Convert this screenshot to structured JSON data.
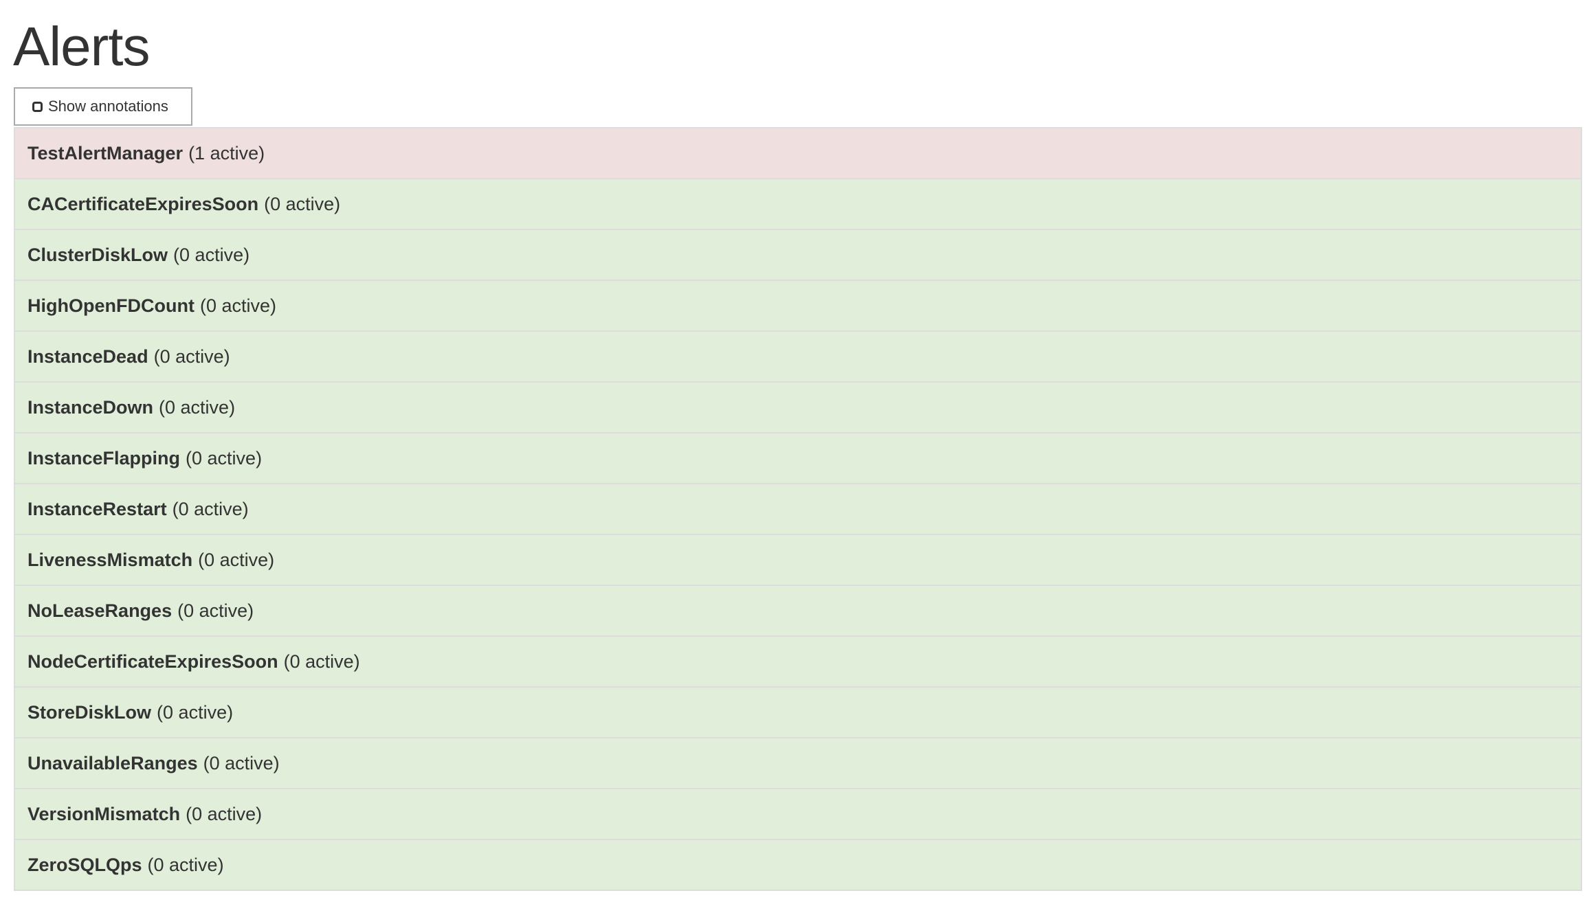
{
  "page_title": "Alerts",
  "toggle": {
    "label": "Show annotations",
    "checked": false
  },
  "colors": {
    "firing": "#f0dfdf",
    "inactive": "#e1eeda",
    "border": "#dddddd"
  },
  "alerts": [
    {
      "name": "TestAlertManager",
      "count": "(1 active)",
      "state": "firing"
    },
    {
      "name": "CACertificateExpiresSoon",
      "count": "(0 active)",
      "state": "inactive"
    },
    {
      "name": "ClusterDiskLow",
      "count": "(0 active)",
      "state": "inactive"
    },
    {
      "name": "HighOpenFDCount",
      "count": "(0 active)",
      "state": "inactive"
    },
    {
      "name": "InstanceDead",
      "count": "(0 active)",
      "state": "inactive"
    },
    {
      "name": "InstanceDown",
      "count": "(0 active)",
      "state": "inactive"
    },
    {
      "name": "InstanceFlapping",
      "count": "(0 active)",
      "state": "inactive"
    },
    {
      "name": "InstanceRestart",
      "count": "(0 active)",
      "state": "inactive"
    },
    {
      "name": "LivenessMismatch",
      "count": "(0 active)",
      "state": "inactive"
    },
    {
      "name": "NoLeaseRanges",
      "count": "(0 active)",
      "state": "inactive"
    },
    {
      "name": "NodeCertificateExpiresSoon",
      "count": "(0 active)",
      "state": "inactive"
    },
    {
      "name": "StoreDiskLow",
      "count": "(0 active)",
      "state": "inactive"
    },
    {
      "name": "UnavailableRanges",
      "count": "(0 active)",
      "state": "inactive"
    },
    {
      "name": "VersionMismatch",
      "count": "(0 active)",
      "state": "inactive"
    },
    {
      "name": "ZeroSQLQps",
      "count": "(0 active)",
      "state": "inactive"
    }
  ]
}
